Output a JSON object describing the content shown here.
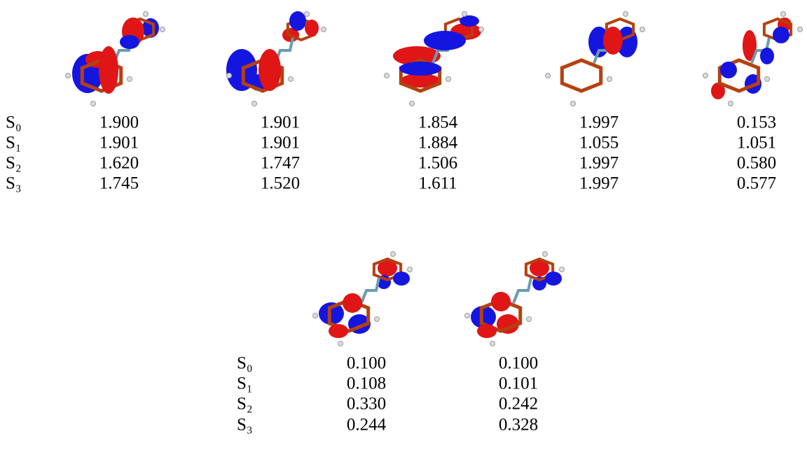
{
  "panels": [
    {
      "rows": [
        {
          "label": "S₀",
          "values": [
            "1.900",
            "1.901",
            "1.854",
            "1.997",
            "0.153"
          ]
        },
        {
          "label": "S₁",
          "values": [
            "1.901",
            "1.901",
            "1.884",
            "1.055",
            "1.051"
          ]
        },
        {
          "label": "S₂",
          "values": [
            "1.620",
            "1.747",
            "1.506",
            "1.997",
            "0.580"
          ]
        },
        {
          "label": "S₃",
          "values": [
            "1.745",
            "1.520",
            "1.611",
            "1.997",
            "0.577"
          ]
        }
      ]
    },
    {
      "rows": [
        {
          "label": "S₀",
          "values": [
            "0.100",
            "0.100"
          ]
        },
        {
          "label": "S₁",
          "values": [
            "0.108",
            "0.101"
          ]
        },
        {
          "label": "S₂",
          "values": [
            "0.330",
            "0.242"
          ]
        },
        {
          "label": "S₃",
          "values": [
            "0.244",
            "0.328"
          ]
        }
      ]
    }
  ]
}
